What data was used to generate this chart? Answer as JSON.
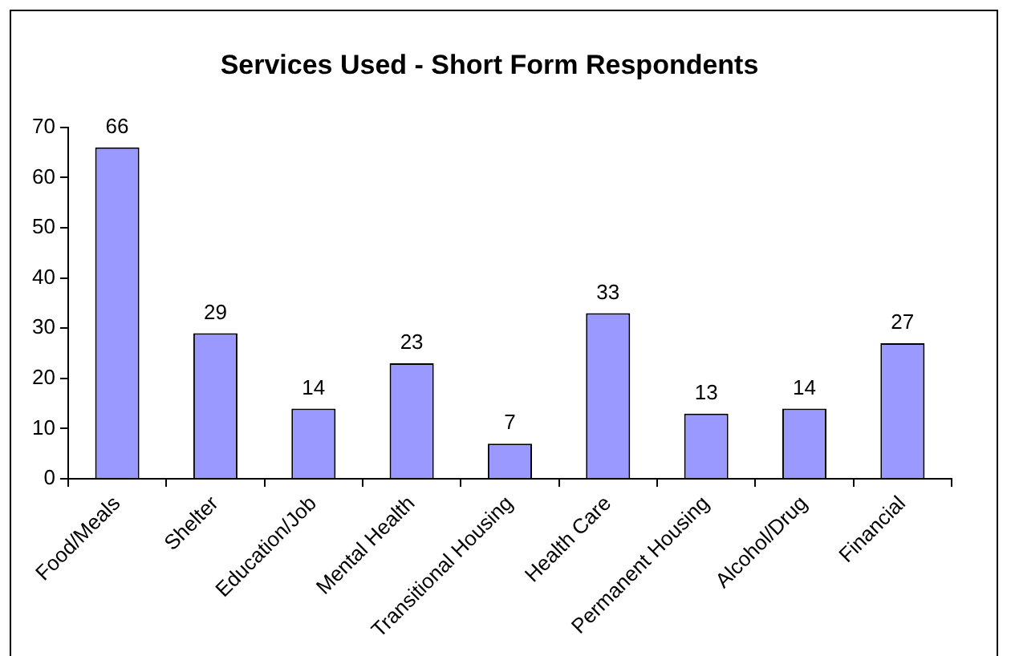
{
  "chart_data": {
    "type": "bar",
    "title": "Services Used - Short Form Respondents",
    "categories": [
      "Food/Meals",
      "Shelter",
      "Education/Job",
      "Mental Health",
      "Transitional Housing",
      "Health Care",
      "Permanent Housing",
      "Alcohol/Drug",
      "Financial"
    ],
    "values": [
      66,
      29,
      14,
      23,
      7,
      33,
      13,
      14,
      27
    ],
    "color": "#9999ff",
    "ylim": [
      0,
      70
    ],
    "yticks": [
      0,
      10,
      20,
      30,
      40,
      50,
      60,
      70
    ],
    "grid": false,
    "legend": false,
    "data_labels": true
  }
}
